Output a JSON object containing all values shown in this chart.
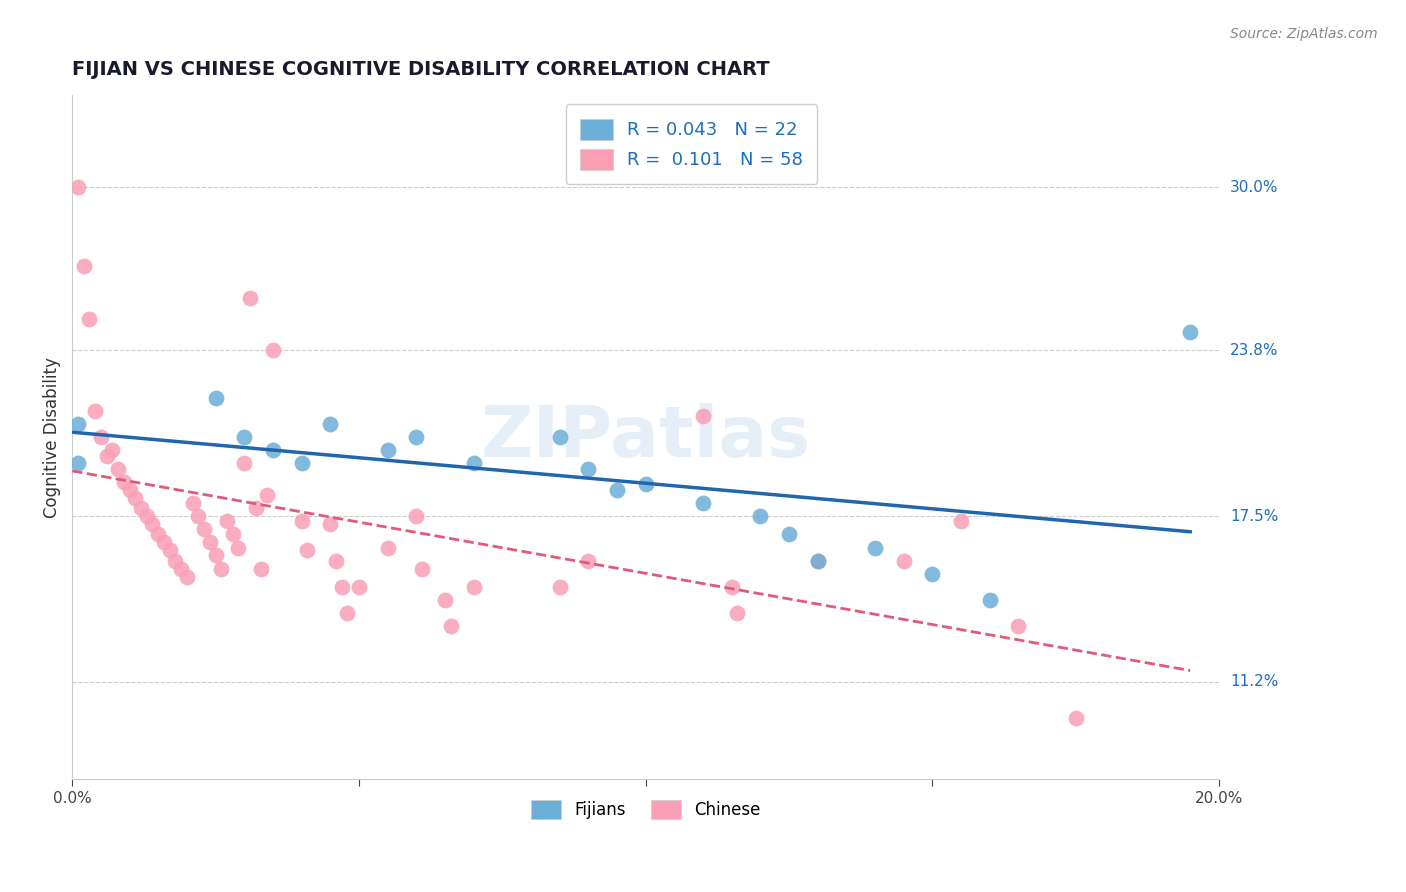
{
  "title": "FIJIAN VS CHINESE COGNITIVE DISABILITY CORRELATION CHART",
  "source": "Source: ZipAtlas.com",
  "ylabel": "Cognitive Disability",
  "xlim": [
    0.0,
    0.2
  ],
  "ylim": [
    0.075,
    0.335
  ],
  "ytick_labels": [
    "30.0%",
    "23.8%",
    "17.5%",
    "11.2%"
  ],
  "ytick_values": [
    0.3,
    0.238,
    0.175,
    0.112
  ],
  "watermark": "ZIPatlas",
  "legend_r_fijian": "0.043",
  "legend_n_fijian": "22",
  "legend_r_chinese": "0.101",
  "legend_n_chinese": "58",
  "fijian_color": "#6baed6",
  "chinese_color": "#fa9fb5",
  "fijian_line_color": "#2166ac",
  "chinese_line_color": "#e05a7a",
  "fijian_scatter": [
    [
      0.001,
      0.21
    ],
    [
      0.001,
      0.195
    ],
    [
      0.025,
      0.22
    ],
    [
      0.03,
      0.205
    ],
    [
      0.035,
      0.2
    ],
    [
      0.04,
      0.195
    ],
    [
      0.045,
      0.21
    ],
    [
      0.055,
      0.2
    ],
    [
      0.06,
      0.205
    ],
    [
      0.07,
      0.195
    ],
    [
      0.085,
      0.205
    ],
    [
      0.09,
      0.193
    ],
    [
      0.095,
      0.185
    ],
    [
      0.1,
      0.187
    ],
    [
      0.11,
      0.18
    ],
    [
      0.12,
      0.175
    ],
    [
      0.125,
      0.168
    ],
    [
      0.13,
      0.158
    ],
    [
      0.14,
      0.163
    ],
    [
      0.15,
      0.153
    ],
    [
      0.16,
      0.143
    ],
    [
      0.195,
      0.245
    ]
  ],
  "chinese_scatter": [
    [
      0.001,
      0.3
    ],
    [
      0.002,
      0.27
    ],
    [
      0.003,
      0.25
    ],
    [
      0.004,
      0.215
    ],
    [
      0.005,
      0.205
    ],
    [
      0.006,
      0.198
    ],
    [
      0.007,
      0.2
    ],
    [
      0.008,
      0.193
    ],
    [
      0.009,
      0.188
    ],
    [
      0.01,
      0.185
    ],
    [
      0.011,
      0.182
    ],
    [
      0.012,
      0.178
    ],
    [
      0.013,
      0.175
    ],
    [
      0.014,
      0.172
    ],
    [
      0.015,
      0.168
    ],
    [
      0.016,
      0.165
    ],
    [
      0.017,
      0.162
    ],
    [
      0.018,
      0.158
    ],
    [
      0.019,
      0.155
    ],
    [
      0.02,
      0.152
    ],
    [
      0.021,
      0.18
    ],
    [
      0.022,
      0.175
    ],
    [
      0.023,
      0.17
    ],
    [
      0.024,
      0.165
    ],
    [
      0.025,
      0.16
    ],
    [
      0.026,
      0.155
    ],
    [
      0.027,
      0.173
    ],
    [
      0.028,
      0.168
    ],
    [
      0.029,
      0.163
    ],
    [
      0.03,
      0.195
    ],
    [
      0.031,
      0.258
    ],
    [
      0.032,
      0.178
    ],
    [
      0.033,
      0.155
    ],
    [
      0.034,
      0.183
    ],
    [
      0.035,
      0.238
    ],
    [
      0.04,
      0.173
    ],
    [
      0.041,
      0.162
    ],
    [
      0.045,
      0.172
    ],
    [
      0.046,
      0.158
    ],
    [
      0.047,
      0.148
    ],
    [
      0.048,
      0.138
    ],
    [
      0.05,
      0.148
    ],
    [
      0.055,
      0.163
    ],
    [
      0.06,
      0.175
    ],
    [
      0.061,
      0.155
    ],
    [
      0.065,
      0.143
    ],
    [
      0.066,
      0.133
    ],
    [
      0.07,
      0.148
    ],
    [
      0.085,
      0.148
    ],
    [
      0.09,
      0.158
    ],
    [
      0.11,
      0.213
    ],
    [
      0.115,
      0.148
    ],
    [
      0.116,
      0.138
    ],
    [
      0.13,
      0.158
    ],
    [
      0.145,
      0.158
    ],
    [
      0.155,
      0.173
    ],
    [
      0.165,
      0.133
    ],
    [
      0.175,
      0.098
    ]
  ]
}
